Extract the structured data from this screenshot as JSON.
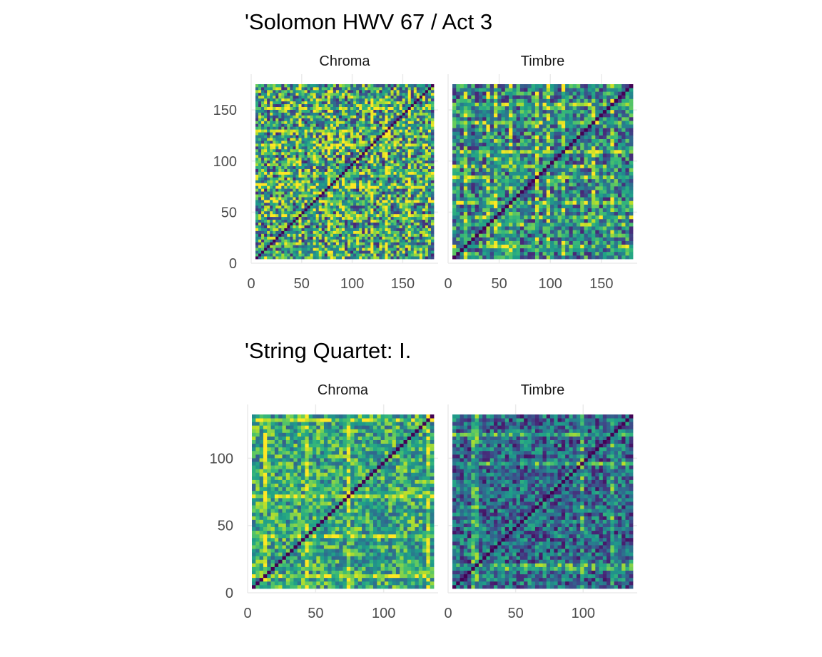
{
  "chart_data": [
    {
      "type": "heatmap",
      "title": "'Solomon HWV 67 / Act 3",
      "xlabel": "",
      "ylabel": "",
      "xlim": [
        0,
        185
      ],
      "ylim": [
        0,
        185
      ],
      "x_ticks": [
        "0",
        "50",
        "100",
        "150"
      ],
      "y_ticks": [
        "0",
        "50",
        "100",
        "150"
      ],
      "grid": true,
      "colormap": "viridis",
      "panels": [
        {
          "label": "Chroma",
          "n": 185,
          "mean": 0.55,
          "noise": 0.45,
          "mode": "fine",
          "bright_bands": [
            45,
            60,
            75,
            80,
            90,
            120,
            135,
            160
          ]
        },
        {
          "label": "Timbre",
          "n": 185,
          "mean": 0.45,
          "noise": 0.35,
          "mode": "blocky",
          "bright_bands": [
            15,
            35,
            45,
            60,
            85,
            100,
            115,
            145,
            165
          ]
        }
      ]
    },
    {
      "type": "heatmap",
      "title": "'String Quartet: I.",
      "xlabel": "",
      "ylabel": "",
      "xlim": [
        0,
        140
      ],
      "ylim": [
        0,
        140
      ],
      "x_ticks": [
        "0",
        "50",
        "100"
      ],
      "y_ticks": [
        "0",
        "50",
        "100"
      ],
      "grid": true,
      "colormap": "viridis",
      "panels": [
        {
          "label": "Chroma",
          "n": 140,
          "mean": 0.6,
          "noise": 0.3,
          "mode": "blocky",
          "bright_bands": [
            10,
            42,
            75,
            135
          ]
        },
        {
          "label": "Timbre",
          "n": 140,
          "mean": 0.35,
          "noise": 0.3,
          "mode": "blocky",
          "bright_bands": [
            15,
            20,
            100,
            125
          ]
        }
      ]
    }
  ],
  "colors": {
    "background": "#ffffff",
    "grid": "#ebebeb",
    "title": "#000000",
    "strip_text": "#1a1a1a",
    "tick_text": "#4d4d4d",
    "diagonal": "#440154"
  }
}
